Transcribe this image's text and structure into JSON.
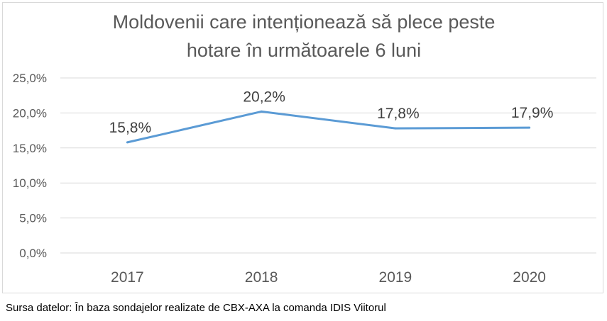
{
  "chart_data": {
    "type": "line",
    "title_lines": [
      "Moldovenii care intenționează să plece peste",
      "hotare în următoarele 6 luni"
    ],
    "categories": [
      "2017",
      "2018",
      "2019",
      "2020"
    ],
    "series": [
      {
        "name": "Moldovenii care intenționează să plece peste hotare",
        "values": [
          15.8,
          20.2,
          17.8,
          17.9
        ],
        "color": "#5B9BD5"
      }
    ],
    "data_labels": [
      "15,8%",
      "20,2%",
      "17,8%",
      "17,9%"
    ],
    "ylim": [
      0,
      25
    ],
    "yticks": [
      0,
      5,
      10,
      15,
      20,
      25
    ],
    "ytick_labels": [
      "0,0%",
      "5,0%",
      "10,0%",
      "15,0%",
      "20,0%",
      "25,0%"
    ],
    "xlabel": "",
    "ylabel": "",
    "grid": true,
    "legend": "none"
  },
  "source": "Sursa datelor: În baza sondajelor realizate de CBX-AXA la comanda IDIS Viitorul"
}
